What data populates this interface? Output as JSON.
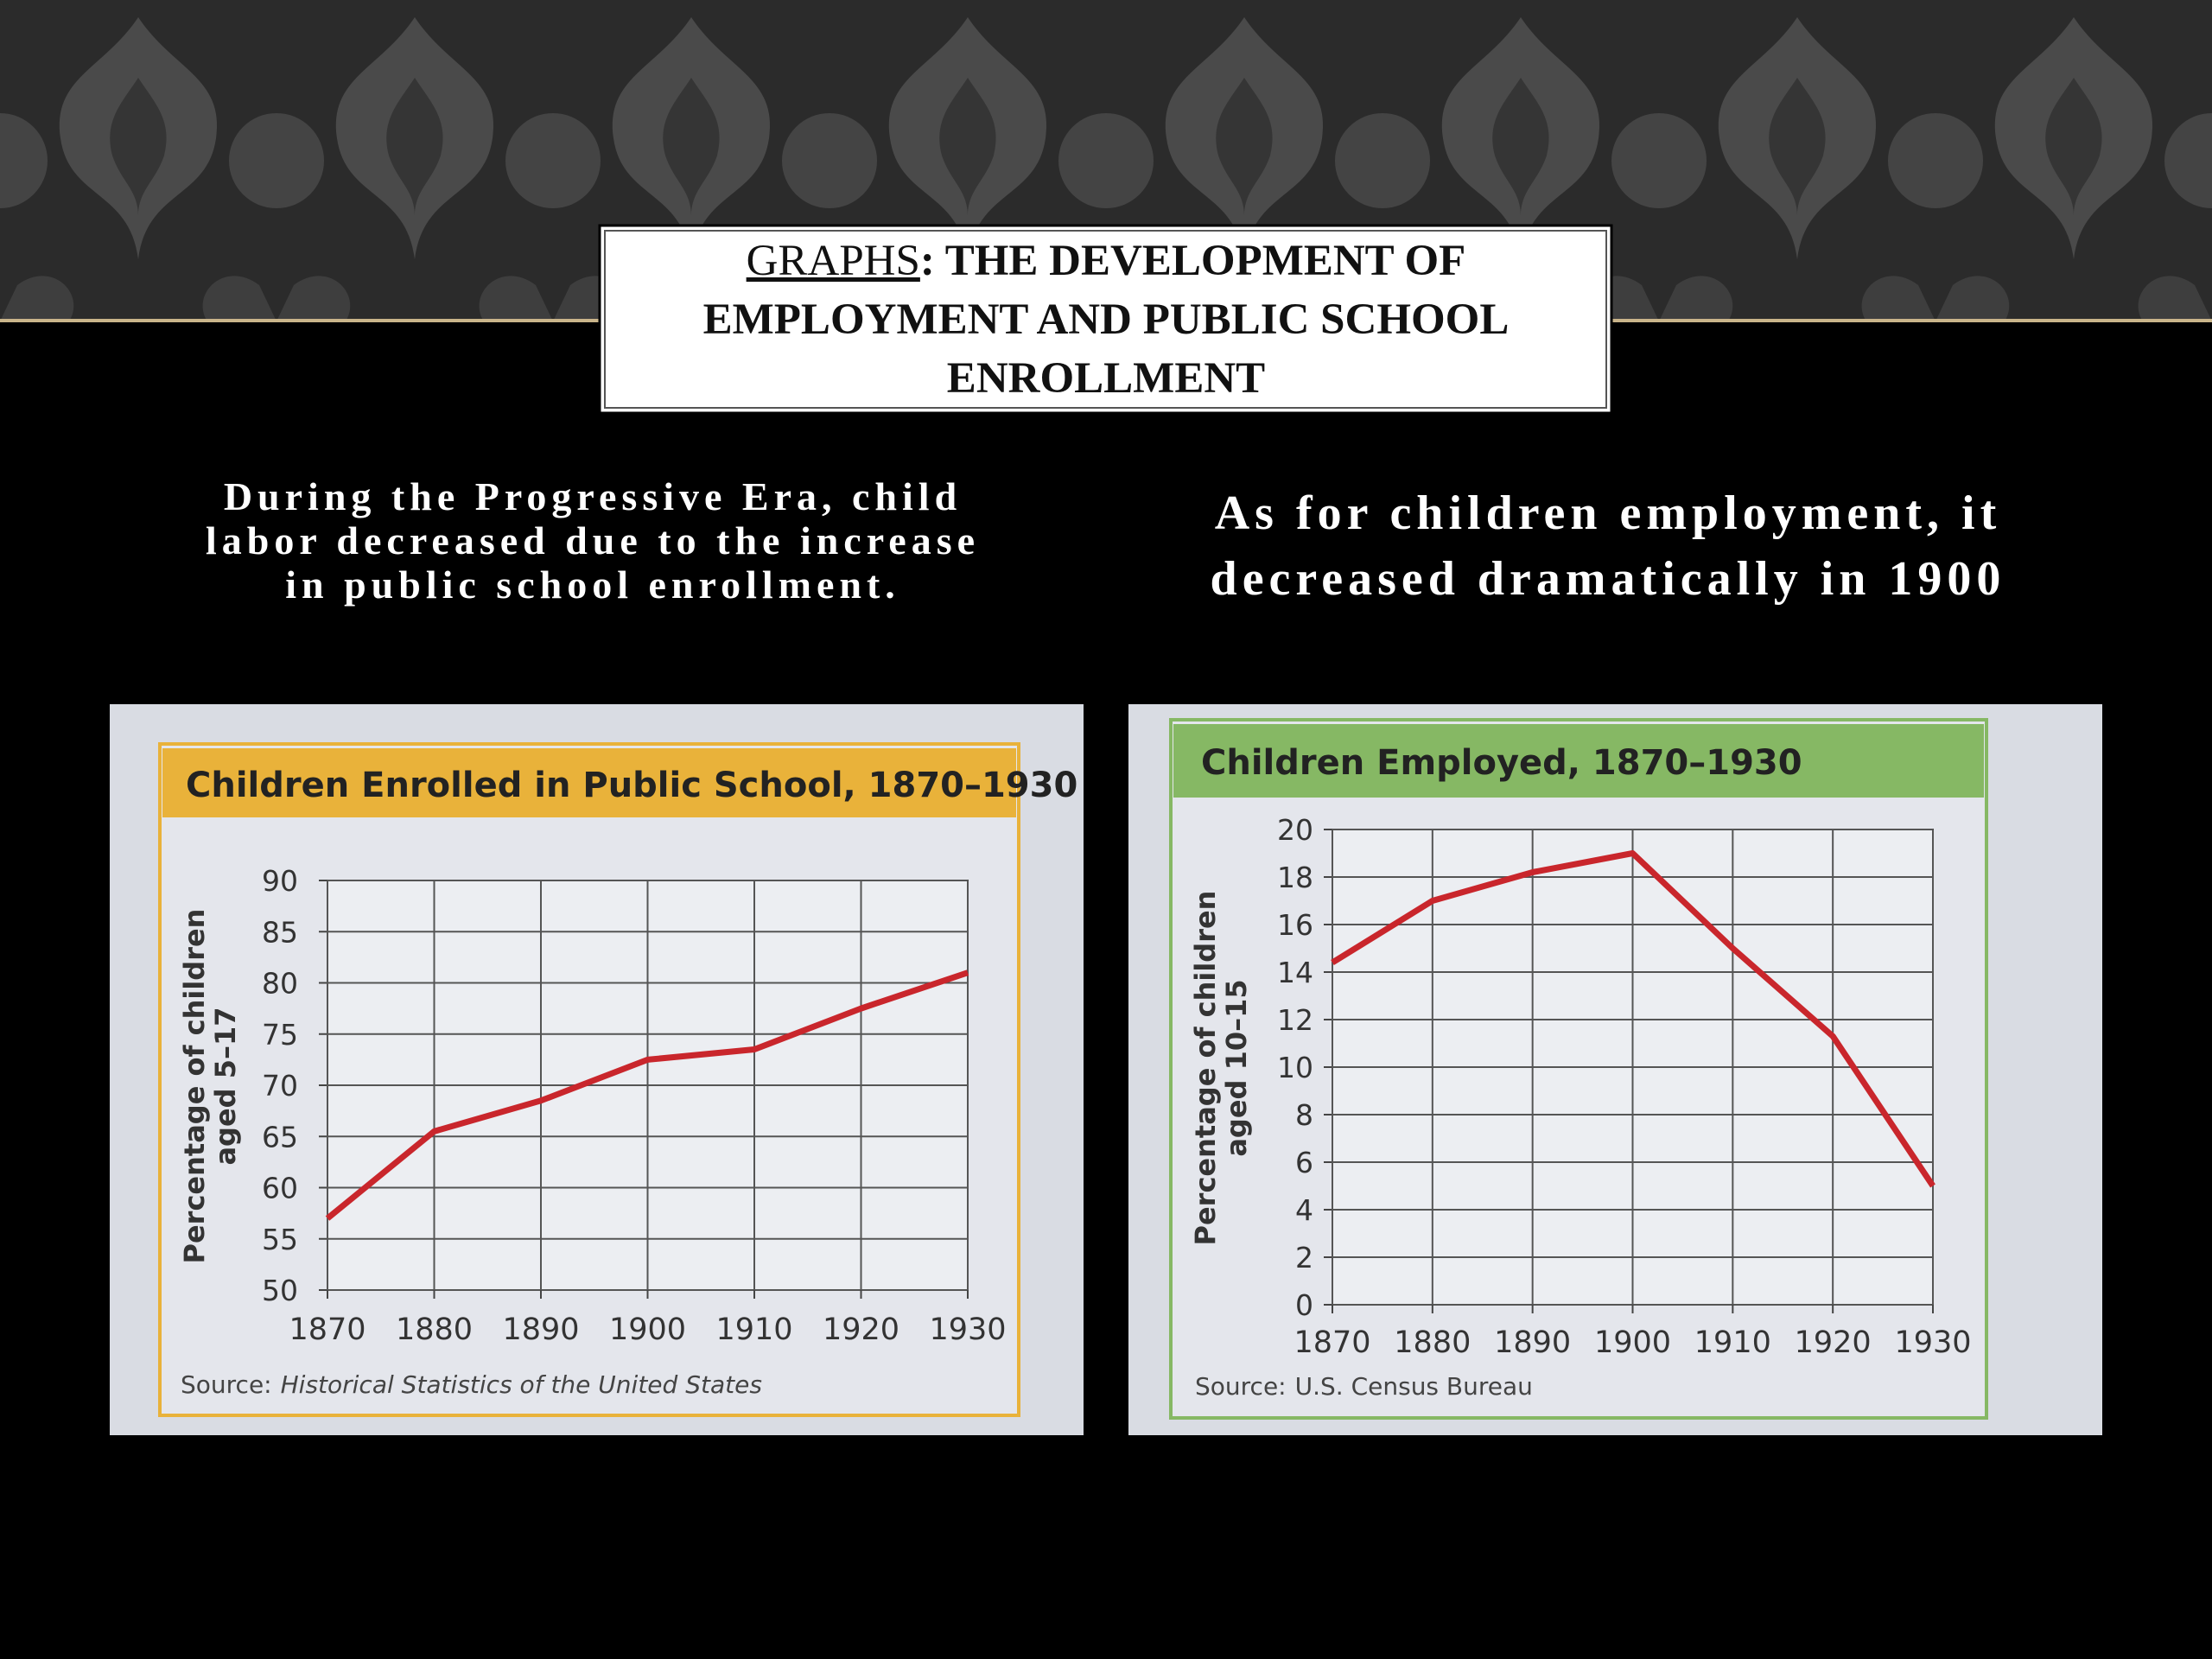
{
  "slide": {
    "title_lead": "GRAPHS",
    "title_lines": [
      ": THE DEVELOPMENT OF",
      "EMPLOYMENT AND PUBLIC SCHOOL",
      "ENROLLMENT"
    ],
    "left_text": [
      "During the Progressive Era, child",
      "labor decreased due to the increase",
      "in public school enrollment."
    ],
    "right_text": [
      "As for children employment, it",
      "decreased dramatically in 1900"
    ]
  },
  "chart_data": [
    {
      "type": "line",
      "title": "Children Enrolled in Public School, 1870–1930",
      "header_color": "#e9b23a",
      "color": "#c9262c",
      "x": [
        1870,
        1880,
        1890,
        1900,
        1910,
        1920,
        1930
      ],
      "values": [
        57,
        65.5,
        68.5,
        72.5,
        73.5,
        77.5,
        81
      ],
      "xlim": [
        1870,
        1930
      ],
      "xticks": [
        1870,
        1880,
        1890,
        1900,
        1910,
        1920,
        1930
      ],
      "ylim": [
        50,
        90
      ],
      "yticks": [
        50,
        55,
        60,
        65,
        70,
        75,
        80,
        85,
        90
      ],
      "ylabel": [
        "Percentage of children",
        "aged 5–17"
      ],
      "grid": true,
      "source_label": "Source:",
      "source": "Historical Statistics of the United States",
      "source_italic": true
    },
    {
      "type": "line",
      "title": "Children Employed, 1870–1930",
      "header_color": "#86b864",
      "color": "#c9262c",
      "x": [
        1870,
        1880,
        1890,
        1900,
        1910,
        1920,
        1930
      ],
      "values": [
        14.4,
        17,
        18.2,
        19,
        15,
        11.3,
        5
      ],
      "xlim": [
        1870,
        1930
      ],
      "xticks": [
        1870,
        1880,
        1890,
        1900,
        1910,
        1920,
        1930
      ],
      "ylim": [
        0,
        20
      ],
      "yticks": [
        0,
        2,
        4,
        6,
        8,
        10,
        12,
        14,
        16,
        18,
        20
      ],
      "ylabel": [
        "Percentage of children",
        "aged 10–15"
      ],
      "grid": true,
      "source_label": "Source:",
      "source": "U.S. Census Bureau",
      "source_italic": false
    }
  ]
}
